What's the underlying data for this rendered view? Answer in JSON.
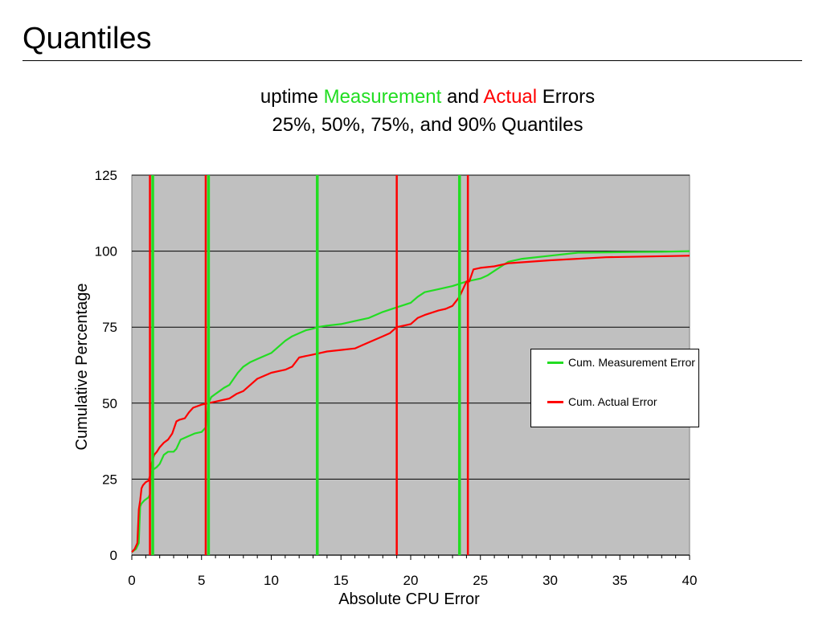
{
  "slide": {
    "title": "Quantiles"
  },
  "chart_title": {
    "line1": [
      {
        "text": "uptime ",
        "color": "#000000"
      },
      {
        "text": "Measurement",
        "color": "#22dd22"
      },
      {
        "text": " and ",
        "color": "#000000"
      },
      {
        "text": "Actual",
        "color": "#ff0000"
      },
      {
        "text": " Errors",
        "color": "#000000"
      }
    ],
    "line2": "25%, 50%, 75%, and 90% Quantiles"
  },
  "chart_data": {
    "type": "line",
    "xlabel": "Absolute CPU Error",
    "ylabel": "Cumulative Percentage",
    "xlim": [
      0,
      40
    ],
    "ylim": [
      0,
      125
    ],
    "xticks": [
      0,
      5,
      10,
      15,
      20,
      25,
      30,
      35,
      40
    ],
    "yticks": [
      0,
      25,
      50,
      75,
      100,
      125
    ],
    "grid": "horizontal",
    "plot_background": "#c0c0c0",
    "legend_position": "right",
    "series": [
      {
        "name": "Cum. Measurement Error",
        "color": "#22dd22",
        "x": [
          0,
          0.3,
          0.5,
          0.55,
          0.6,
          0.7,
          0.9,
          1.2,
          1.3,
          1.35,
          1.5,
          1.8,
          2.0,
          2.3,
          2.6,
          3.0,
          3.2,
          3.5,
          4.0,
          4.5,
          5.0,
          5.3,
          5.5,
          5.7,
          6.0,
          6.3,
          6.6,
          7.0,
          7.3,
          7.6,
          8.0,
          8.5,
          9.0,
          9.5,
          10.0,
          10.5,
          11.0,
          11.5,
          12.0,
          12.5,
          13.0,
          13.3,
          14.0,
          15.0,
          16.0,
          17.0,
          18.0,
          19.0,
          20.0,
          20.5,
          21.0,
          22.0,
          23.0,
          24.0,
          25.0,
          25.5,
          26.0,
          26.5,
          27.0,
          28.0,
          30.0,
          32.0,
          34.0,
          36.0,
          38.0,
          40.0
        ],
        "y": [
          1,
          2,
          4,
          10,
          16,
          17,
          18,
          19,
          20,
          27,
          28,
          29,
          30,
          33,
          34,
          34,
          35,
          38,
          39,
          40,
          40.5,
          42,
          50,
          52,
          53,
          54,
          55,
          56,
          58,
          60,
          62,
          63.5,
          64.5,
          65.5,
          66.5,
          68.5,
          70.5,
          72,
          73,
          74,
          74.5,
          75,
          75.5,
          76,
          77,
          78,
          80,
          81.5,
          83,
          85,
          86.5,
          87.5,
          88.5,
          90,
          91,
          92,
          93.5,
          95,
          96.5,
          97.5,
          98.5,
          99.5,
          99.6,
          99.7,
          99.8,
          100
        ]
      },
      {
        "name": "Cum. Actual Error",
        "color": "#ff0000",
        "x": [
          0,
          0.2,
          0.4,
          0.5,
          0.6,
          0.7,
          0.8,
          1.0,
          1.2,
          1.3,
          1.35,
          1.6,
          1.8,
          2.0,
          2.3,
          2.6,
          2.9,
          3.2,
          3.4,
          3.8,
          4.1,
          4.4,
          4.7,
          5.0,
          5.5,
          6.0,
          6.5,
          7.0,
          7.5,
          8.0,
          8.5,
          9.0,
          9.5,
          10.0,
          10.5,
          11.0,
          11.5,
          12.0,
          12.5,
          13.0,
          13.5,
          14.0,
          15.0,
          16.0,
          16.5,
          17.0,
          18.0,
          18.5,
          19.0,
          20.0,
          20.5,
          21.0,
          22.0,
          22.5,
          23.0,
          23.5,
          24.0,
          24.2,
          24.5,
          25.0,
          26.0,
          27.0,
          30.0,
          34.0,
          40.0
        ],
        "y": [
          1,
          2,
          4,
          15,
          18,
          22,
          23,
          24,
          24.5,
          26,
          29,
          33,
          34,
          35.5,
          37,
          38,
          40,
          44,
          44.5,
          45,
          47,
          48.5,
          49,
          49.5,
          50,
          50.5,
          51,
          51.5,
          53,
          54,
          56,
          58,
          59,
          60,
          60.5,
          61,
          62,
          65,
          65.5,
          66,
          66.5,
          67,
          67.5,
          68,
          69,
          70,
          72,
          73,
          75,
          76,
          78,
          79,
          80.5,
          81,
          82,
          85,
          90,
          90,
          94,
          94.5,
          95,
          96,
          97,
          98,
          98.5
        ]
      }
    ],
    "quantile_lines": [
      {
        "series": "Cum. Measurement Error",
        "values": [
          1.5,
          5.5,
          13.3,
          23.5
        ],
        "color": "#22dd22"
      },
      {
        "series": "Cum. Actual Error",
        "values": [
          1.3,
          5.3,
          19.0,
          24.1
        ],
        "color": "#ff0000"
      }
    ]
  }
}
